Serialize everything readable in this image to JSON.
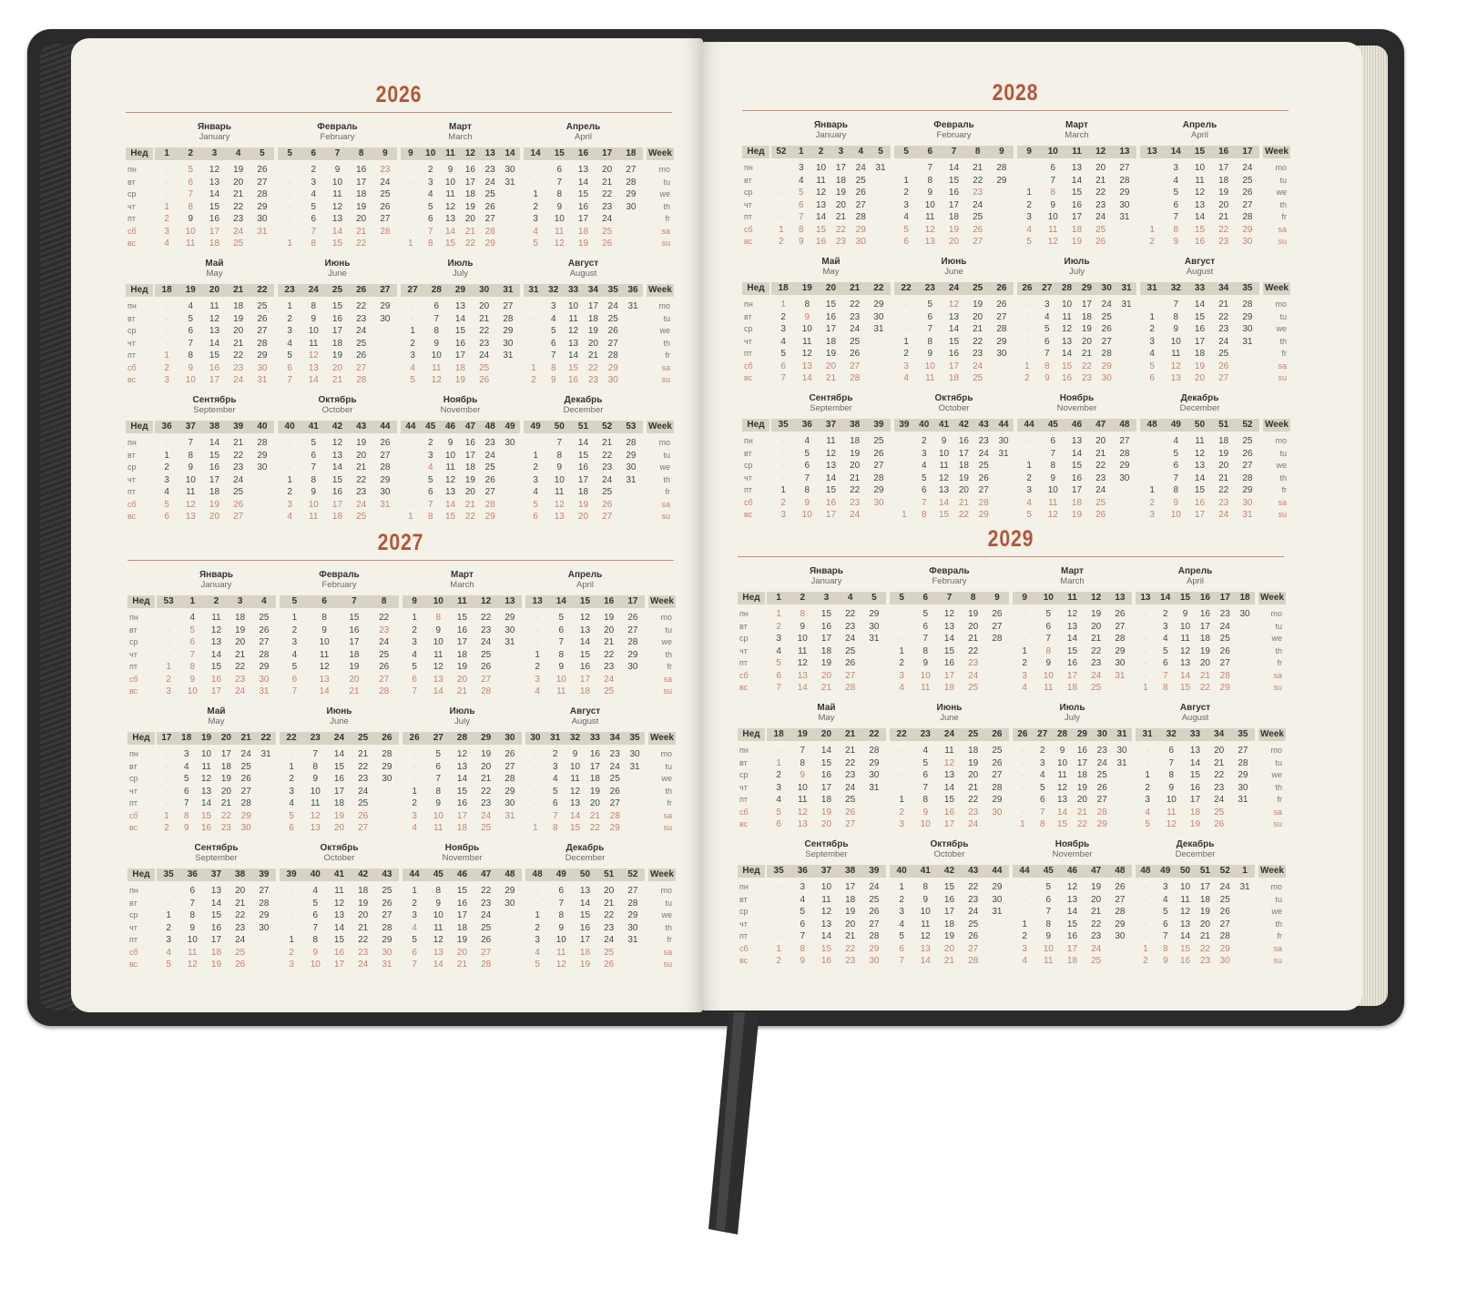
{
  "labels": {
    "week_ru": "Нед",
    "week_en": "Week",
    "weekdays_ru": [
      "пн",
      "вт",
      "ср",
      "чт",
      "пт",
      "сб",
      "вс"
    ],
    "weekdays_en": [
      "mo",
      "tu",
      "we",
      "th",
      "fr",
      "sa",
      "su"
    ]
  },
  "colors": {
    "title": "#b5553a",
    "holiday": "#c4806f",
    "text": "#444444",
    "band": "#d8d3c4",
    "page": "#f4f2e8",
    "cover": "#2a2a2b"
  },
  "holidays": [
    "01-01",
    "01-02",
    "01-05",
    "01-06",
    "01-07",
    "01-08",
    "02-23",
    "03-08",
    "05-01",
    "05-09",
    "06-12",
    "11-04"
  ],
  "years": [
    {
      "year": "2026",
      "months": [
        {
          "ru": "Январь",
          "en": "January",
          "weeks": "1 2 3 4 5",
          "days": [
            "- 5 12 19 26",
            "- 6 13 20 27",
            "- 7 14 21 28",
            "1 8 15 22 29",
            "2 9 16 23 30",
            "3 10 17 24 31",
            "4 11 18 25"
          ]
        },
        {
          "ru": "Февраль",
          "en": "February",
          "weeks": "5 6 7 8 9",
          "days": [
            "- 2 9 16 23",
            "- 3 10 17 24",
            "- 4 11 18 25",
            "- 5 12 19 26",
            "- 6 13 20 27",
            "- 7 14 21 28",
            "1 8 15 22"
          ]
        },
        {
          "ru": "Март",
          "en": "March",
          "weeks": "9 10 11 12 13 14",
          "days": [
            "- 2 9 16 23 30",
            "- 3 10 17 24 31",
            "- 4 11 18 25",
            "- 5 12 19 26",
            "- 6 13 20 27",
            "- 7 14 21 28",
            "1 8 15 22 29"
          ]
        },
        {
          "ru": "Апрель",
          "en": "April",
          "weeks": "14 15 16 17 18",
          "days": [
            "- 6 13 20 27",
            "- 7 14 21 28",
            "1 8 15 22 29",
            "2 9 16 23 30",
            "3 10 17 24",
            "4 11 18 25",
            "5 12 19 26"
          ]
        },
        {
          "ru": "Май",
          "en": "May",
          "weeks": "18 19 20 21 22",
          "days": [
            "- 4 11 18 25",
            "- 5 12 19 26",
            "- 6 13 20 27",
            "- 7 14 21 28",
            "1 8 15 22 29",
            "2 9 16 23 30",
            "3 10 17 24 31"
          ]
        },
        {
          "ru": "Июнь",
          "en": "June",
          "weeks": "23 24 25 26 27",
          "days": [
            "1 8 15 22 29",
            "2 9 16 23 30",
            "3 10 17 24",
            "4 11 18 25",
            "5 12 19 26",
            "6 13 20 27",
            "7 14 21 28"
          ]
        },
        {
          "ru": "Июль",
          "en": "July",
          "weeks": "27 28 29 30 31",
          "days": [
            "- 6 13 20 27",
            "- 7 14 21 28",
            "1 8 15 22 29",
            "2 9 16 23 30",
            "3 10 17 24 31",
            "4 11 18 25",
            "5 12 19 26"
          ]
        },
        {
          "ru": "Август",
          "en": "August",
          "weeks": "31 32 33 34 35 36",
          "days": [
            "- 3 10 17 24 31",
            "- 4 11 18 25",
            "- 5 12 19 26",
            "- 6 13 20 27",
            "- 7 14 21 28",
            "1 8 15 22 29",
            "2 9 16 23 30"
          ]
        },
        {
          "ru": "Сентябрь",
          "en": "September",
          "weeks": "36 37 38 39 40",
          "days": [
            "- 7 14 21 28",
            "1 8 15 22 29",
            "2 9 16 23 30",
            "3 10 17 24",
            "4 11 18 25",
            "5 12 19 26",
            "6 13 20 27"
          ]
        },
        {
          "ru": "Октябрь",
          "en": "October",
          "weeks": "40 41 42 43 44",
          "days": [
            "- 5 12 19 26",
            "- 6 13 20 27",
            "- 7 14 21 28",
            "1 8 15 22 29",
            "2 9 16 23 30",
            "3 10 17 24 31",
            "4 11 18 25"
          ]
        },
        {
          "ru": "Ноябрь",
          "en": "November",
          "weeks": "44 45 46 47 48 49",
          "days": [
            "- 2 9 16 23 30",
            "- 3 10 17 24",
            "- 4 11 18 25",
            "- 5 12 19 26",
            "- 6 13 20 27",
            "- 7 14 21 28",
            "1 8 15 22 29"
          ]
        },
        {
          "ru": "Декабрь",
          "en": "December",
          "weeks": "49 50 51 52 53",
          "days": [
            "- 7 14 21 28",
            "1 8 15 22 29",
            "2 9 16 23 30",
            "3 10 17 24 31",
            "4 11 18 25",
            "5 12 19 26",
            "6 13 20 27"
          ]
        }
      ]
    },
    {
      "year": "2027",
      "months": [
        {
          "ru": "Январь",
          "en": "January",
          "weeks": "53 1 2 3 4",
          "days": [
            "- 4 11 18 25",
            "- 5 12 19 26",
            "- 6 13 20 27",
            "- 7 14 21 28",
            "1 8 15 22 29",
            "2 9 16 23 30",
            "3 10 17 24 31"
          ]
        },
        {
          "ru": "Февраль",
          "en": "February",
          "weeks": "5 6 7 8",
          "days": [
            "1 8 15 22",
            "2 9 16 23",
            "3 10 17 24",
            "4 11 18 25",
            "5 12 19 26",
            "6 13 20 27",
            "7 14 21 28"
          ]
        },
        {
          "ru": "Март",
          "en": "March",
          "weeks": "9 10 11 12 13",
          "days": [
            "1 8 15 22 29",
            "2 9 16 23 30",
            "3 10 17 24 31",
            "4 11 18 25",
            "5 12 19 26",
            "6 13 20 27",
            "7 14 21 28"
          ]
        },
        {
          "ru": "Апрель",
          "en": "April",
          "weeks": "13 14 15 16 17",
          "days": [
            "- 5 12 19 26",
            "- 6 13 20 27",
            "- 7 14 21 28",
            "1 8 15 22 29",
            "2 9 16 23 30",
            "3 10 17 24",
            "4 11 18 25"
          ]
        },
        {
          "ru": "Май",
          "en": "May",
          "weeks": "17 18 19 20 21 22",
          "days": [
            "- 3 10 17 24 31",
            "- 4 11 18 25",
            "- 5 12 19 26",
            "- 6 13 20 27",
            "- 7 14 21 28",
            "1 8 15 22 29",
            "2 9 16 23 30"
          ]
        },
        {
          "ru": "Июнь",
          "en": "June",
          "weeks": "22 23 24 25 26",
          "days": [
            "- 7 14 21 28",
            "1 8 15 22 29",
            "2 9 16 23 30",
            "3 10 17 24",
            "4 11 18 25",
            "5 12 19 26",
            "6 13 20 27"
          ]
        },
        {
          "ru": "Июль",
          "en": "July",
          "weeks": "26 27 28 29 30",
          "days": [
            "- 5 12 19 26",
            "- 6 13 20 27",
            "- 7 14 21 28",
            "1 8 15 22 29",
            "2 9 16 23 30",
            "3 10 17 24 31",
            "4 11 18 25"
          ]
        },
        {
          "ru": "Август",
          "en": "August",
          "weeks": "30 31 32 33 34 35",
          "days": [
            "- 2 9 16 23 30",
            "- 3 10 17 24 31",
            "- 4 11 18 25",
            "- 5 12 19 26",
            "- 6 13 20 27",
            "- 7 14 21 28",
            "1 8 15 22 29"
          ]
        },
        {
          "ru": "Сентябрь",
          "en": "September",
          "weeks": "35 36 37 38 39",
          "days": [
            "- 6 13 20 27",
            "- 7 14 21 28",
            "1 8 15 22 29",
            "2 9 16 23 30",
            "3 10 17 24",
            "4 11 18 25",
            "5 12 19 26"
          ]
        },
        {
          "ru": "Октябрь",
          "en": "October",
          "weeks": "39 40 41 42 43",
          "days": [
            "- 4 11 18 25",
            "- 5 12 19 26",
            "- 6 13 20 27",
            "- 7 14 21 28",
            "1 8 15 22 29",
            "2 9 16 23 30",
            "3 10 17 24 31"
          ]
        },
        {
          "ru": "Ноябрь",
          "en": "November",
          "weeks": "44 45 46 47 48",
          "days": [
            "1 8 15 22 29",
            "2 9 16 23 30",
            "3 10 17 24",
            "4 11 18 25",
            "5 12 19 26",
            "6 13 20 27",
            "7 14 21 28"
          ]
        },
        {
          "ru": "Декабрь",
          "en": "December",
          "weeks": "48 49 50 51 52",
          "days": [
            "- 6 13 20 27",
            "- 7 14 21 28",
            "1 8 15 22 29",
            "2 9 16 23 30",
            "3 10 17 24 31",
            "4 11 18 25",
            "5 12 19 26"
          ]
        }
      ]
    },
    {
      "year": "2028",
      "months": [
        {
          "ru": "Январь",
          "en": "January",
          "weeks": "52 1 2 3 4 5",
          "days": [
            "- 3 10 17 24 31",
            "- 4 11 18 25",
            "- 5 12 19 26",
            "- 6 13 20 27",
            "- 7 14 21 28",
            "1 8 15 22 29",
            "2 9 16 23 30"
          ]
        },
        {
          "ru": "Февраль",
          "en": "February",
          "weeks": "5 6 7 8 9",
          "days": [
            "- 7 14 21 28",
            "1 8 15 22 29",
            "2 9 16 23",
            "3 10 17 24",
            "4 11 18 25",
            "5 12 19 26",
            "6 13 20 27"
          ]
        },
        {
          "ru": "Март",
          "en": "March",
          "weeks": "9 10 11 12 13",
          "days": [
            "- 6 13 20 27",
            "- 7 14 21 28",
            "1 8 15 22 29",
            "2 9 16 23 30",
            "3 10 17 24 31",
            "4 11 18 25",
            "5 12 19 26"
          ]
        },
        {
          "ru": "Апрель",
          "en": "April",
          "weeks": "13 14 15 16 17",
          "days": [
            "- 3 10 17 24",
            "- 4 11 18 25",
            "- 5 12 19 26",
            "- 6 13 20 27",
            "- 7 14 21 28",
            "1 8 15 22 29",
            "2 9 16 23 30"
          ]
        },
        {
          "ru": "Май",
          "en": "May",
          "weeks": "18 19 20 21 22",
          "days": [
            "1 8 15 22 29",
            "2 9 16 23 30",
            "3 10 17 24 31",
            "4 11 18 25",
            "5 12 19 26",
            "6 13 20 27",
            "7 14 21 28"
          ]
        },
        {
          "ru": "Июнь",
          "en": "June",
          "weeks": "22 23 24 25 26",
          "days": [
            "- 5 12 19 26",
            "- 6 13 20 27",
            "- 7 14 21 28",
            "1 8 15 22 29",
            "2 9 16 23 30",
            "3 10 17 24",
            "4 11 18 25"
          ]
        },
        {
          "ru": "Июль",
          "en": "July",
          "weeks": "26 27 28 29 30 31",
          "days": [
            "- 3 10 17 24 31",
            "- 4 11 18 25",
            "- 5 12 19 26",
            "- 6 13 20 27",
            "- 7 14 21 28",
            "1 8 15 22 29",
            "2 9 16 23 30"
          ]
        },
        {
          "ru": "Август",
          "en": "August",
          "weeks": "31 32 33 34 35",
          "days": [
            "- 7 14 21 28",
            "1 8 15 22 29",
            "2 9 16 23 30",
            "3 10 17 24 31",
            "4 11 18 25",
            "5 12 19 26",
            "6 13 20 27"
          ]
        },
        {
          "ru": "Сентябрь",
          "en": "September",
          "weeks": "35 36 37 38 39",
          "days": [
            "- 4 11 18 25",
            "- 5 12 19 26",
            "- 6 13 20 27",
            "- 7 14 21 28",
            "1 8 15 22 29",
            "2 9 16 23 30",
            "3 10 17 24"
          ]
        },
        {
          "ru": "Октябрь",
          "en": "October",
          "weeks": "39 40 41 42 43 44",
          "days": [
            "- 2 9 16 23 30",
            "- 3 10 17 24 31",
            "- 4 11 18 25",
            "- 5 12 19 26",
            "- 6 13 20 27",
            "- 7 14 21 28",
            "1 8 15 22 29"
          ]
        },
        {
          "ru": "Ноябрь",
          "en": "November",
          "weeks": "44 45 46 47 48",
          "days": [
            "- 6 13 20 27",
            "- 7 14 21 28",
            "1 8 15 22 29",
            "2 9 16 23 30",
            "3 10 17 24",
            "4 11 18 25",
            "5 12 19 26"
          ]
        },
        {
          "ru": "Декабрь",
          "en": "December",
          "weeks": "48 49 50 51 52",
          "days": [
            "- 4 11 18 25",
            "- 5 12 19 26",
            "- 6 13 20 27",
            "- 7 14 21 28",
            "1 8 15 22 29",
            "2 9 16 23 30",
            "3 10 17 24 31"
          ]
        }
      ]
    },
    {
      "year": "2029",
      "months": [
        {
          "ru": "Январь",
          "en": "January",
          "weeks": "1 2 3 4 5",
          "days": [
            "1 8 15 22 29",
            "2 9 16 23 30",
            "3 10 17 24 31",
            "4 11 18 25",
            "5 12 19 26",
            "6 13 20 27",
            "7 14 21 28"
          ]
        },
        {
          "ru": "Февраль",
          "en": "February",
          "weeks": "5 6 7 8 9",
          "days": [
            "- 5 12 19 26",
            "- 6 13 20 27",
            "- 7 14 21 28",
            "1 8 15 22",
            "2 9 16 23",
            "3 10 17 24",
            "4 11 18 25"
          ]
        },
        {
          "ru": "Март",
          "en": "March",
          "weeks": "9 10 11 12 13",
          "days": [
            "- 5 12 19 26",
            "- 6 13 20 27",
            "- 7 14 21 28",
            "1 8 15 22 29",
            "2 9 16 23 30",
            "3 10 17 24 31",
            "4 11 18 25"
          ]
        },
        {
          "ru": "Апрель",
          "en": "April",
          "weeks": "13 14 15 16 17 18",
          "days": [
            "- 2 9 16 23 30",
            "- 3 10 17 24",
            "- 4 11 18 25",
            "- 5 12 19 26",
            "- 6 13 20 27",
            "- 7 14 21 28",
            "1 8 15 22 29"
          ]
        },
        {
          "ru": "Май",
          "en": "May",
          "weeks": "18 19 20 21 22",
          "days": [
            "- 7 14 21 28",
            "1 8 15 22 29",
            "2 9 16 23 30",
            "3 10 17 24 31",
            "4 11 18 25",
            "5 12 19 26",
            "6 13 20 27"
          ]
        },
        {
          "ru": "Июнь",
          "en": "June",
          "weeks": "22 23 24 25 26",
          "days": [
            "- 4 11 18 25",
            "- 5 12 19 26",
            "- 6 13 20 27",
            "- 7 14 21 28",
            "1 8 15 22 29",
            "2 9 16 23 30",
            "3 10 17 24"
          ]
        },
        {
          "ru": "Июль",
          "en": "July",
          "weeks": "26 27 28 29 30 31",
          "days": [
            "- 2 9 16 23 30",
            "- 3 10 17 24 31",
            "- 4 11 18 25",
            "- 5 12 19 26",
            "- 6 13 20 27",
            "- 7 14 21 28",
            "1 8 15 22 29"
          ]
        },
        {
          "ru": "Август",
          "en": "August",
          "weeks": "31 32 33 34 35",
          "days": [
            "- 6 13 20 27",
            "- 7 14 21 28",
            "1 8 15 22 29",
            "2 9 16 23 30",
            "3 10 17 24 31",
            "4 11 18 25",
            "5 12 19 26"
          ]
        },
        {
          "ru": "Сентябрь",
          "en": "September",
          "weeks": "35 36 37 38 39",
          "days": [
            "- 3 10 17 24",
            "- 4 11 18 25",
            "- 5 12 19 26",
            "- 6 13 20 27",
            "- 7 14 21 28",
            "1 8 15 22 29",
            "2 9 16 23 30"
          ]
        },
        {
          "ru": "Октябрь",
          "en": "October",
          "weeks": "40 41 42 43 44",
          "days": [
            "1 8 15 22 29",
            "2 9 16 23 30",
            "3 10 17 24 31",
            "4 11 18 25",
            "5 12 19 26",
            "6 13 20 27",
            "7 14 21 28"
          ]
        },
        {
          "ru": "Ноябрь",
          "en": "November",
          "weeks": "44 45 46 47 48",
          "days": [
            "- 5 12 19 26",
            "- 6 13 20 27",
            "- 7 14 21 28",
            "1 8 15 22 29",
            "2 9 16 23 30",
            "3 10 17 24",
            "4 11 18 25"
          ]
        },
        {
          "ru": "Декабрь",
          "en": "December",
          "weeks": "48 49 50 51 52 1",
          "days": [
            "- 3 10 17 24 31",
            "- 4 11 18 25",
            "- 5 12 19 26",
            "- 6 13 20 27",
            "- 7 14 21 28",
            "1 8 15 22 29",
            "2 9 16 23 30"
          ]
        }
      ]
    }
  ]
}
